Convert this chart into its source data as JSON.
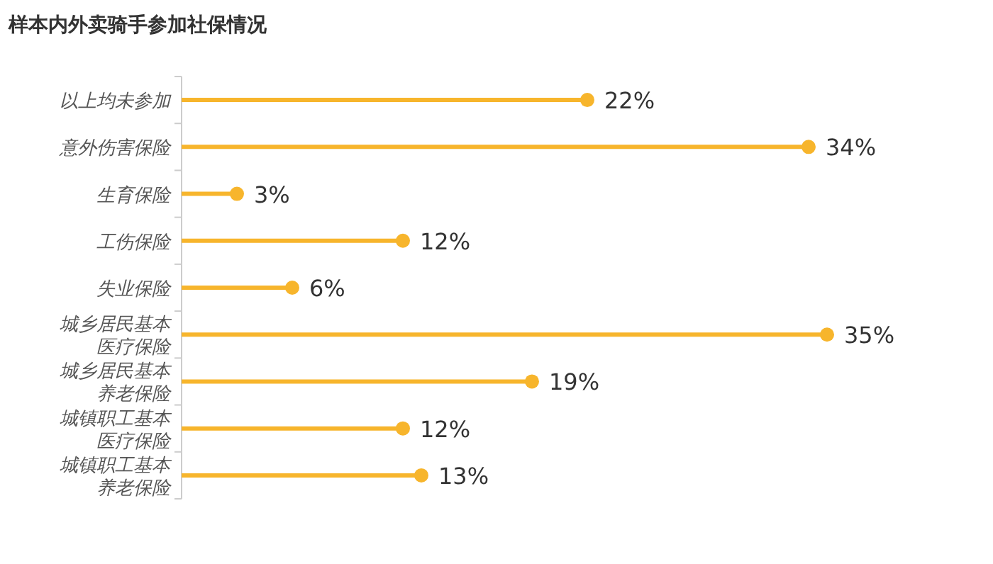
{
  "chart_data": {
    "type": "lollipop",
    "orientation": "horizontal",
    "title": "样本内外卖骑手参加社保情况",
    "categories": [
      "以上均未参加",
      "意外伤害保险",
      "生育保险",
      "工伤保险",
      "失业保险",
      "城乡居民基本医疗保险",
      "城乡居民基本养老保险",
      "城镇职工基本医疗保险",
      "城镇职工基本养老保险"
    ],
    "values": [
      22,
      34,
      3,
      12,
      6,
      35,
      19,
      12,
      13
    ],
    "value_labels": [
      "22%",
      "34%",
      "3%",
      "12%",
      "6%",
      "35%",
      "19%",
      "12%",
      "13%"
    ],
    "color": "#f7b52c",
    "marker": "circle"
  }
}
